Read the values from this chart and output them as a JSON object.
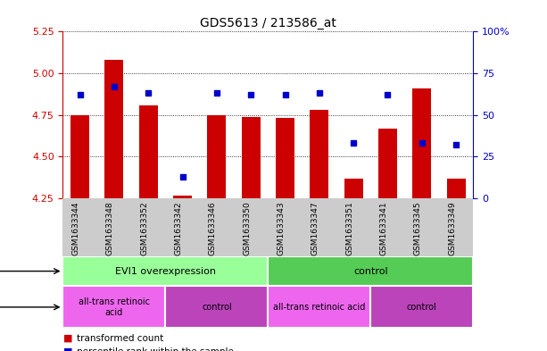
{
  "title": "GDS5613 / 213586_at",
  "samples": [
    "GSM1633344",
    "GSM1633348",
    "GSM1633352",
    "GSM1633342",
    "GSM1633346",
    "GSM1633350",
    "GSM1633343",
    "GSM1633347",
    "GSM1633351",
    "GSM1633341",
    "GSM1633345",
    "GSM1633349"
  ],
  "transformed_count": [
    4.75,
    5.08,
    4.81,
    4.265,
    4.75,
    4.74,
    4.73,
    4.78,
    4.37,
    4.67,
    4.91,
    4.37
  ],
  "percentile_rank": [
    62,
    67,
    63,
    13,
    63,
    62,
    62,
    63,
    33,
    62,
    33,
    32
  ],
  "ylim_left": [
    4.25,
    5.25
  ],
  "ylim_right": [
    0,
    100
  ],
  "yticks_left": [
    4.25,
    4.5,
    4.75,
    5.0,
    5.25
  ],
  "yticks_right": [
    0,
    25,
    50,
    75,
    100
  ],
  "bar_color": "#cc0000",
  "square_color": "#0000cc",
  "bar_width": 0.55,
  "bar_bottom": 4.25,
  "left_axis_color": "#cc0000",
  "right_axis_color": "#0000cc",
  "tick_label_bg": "#cccccc",
  "genotype_groups": [
    {
      "label": "EVI1 overexpression",
      "start": 0,
      "end": 5,
      "color": "#99ff99"
    },
    {
      "label": "control",
      "start": 6,
      "end": 11,
      "color": "#55cc55"
    }
  ],
  "agent_groups": [
    {
      "label": "all-trans retinoic\nacid",
      "start": 0,
      "end": 2,
      "color": "#ee66ee"
    },
    {
      "label": "control",
      "start": 3,
      "end": 5,
      "color": "#bb44bb"
    },
    {
      "label": "all-trans retinoic acid",
      "start": 6,
      "end": 8,
      "color": "#ee66ee"
    },
    {
      "label": "control",
      "start": 9,
      "end": 11,
      "color": "#bb44bb"
    }
  ]
}
